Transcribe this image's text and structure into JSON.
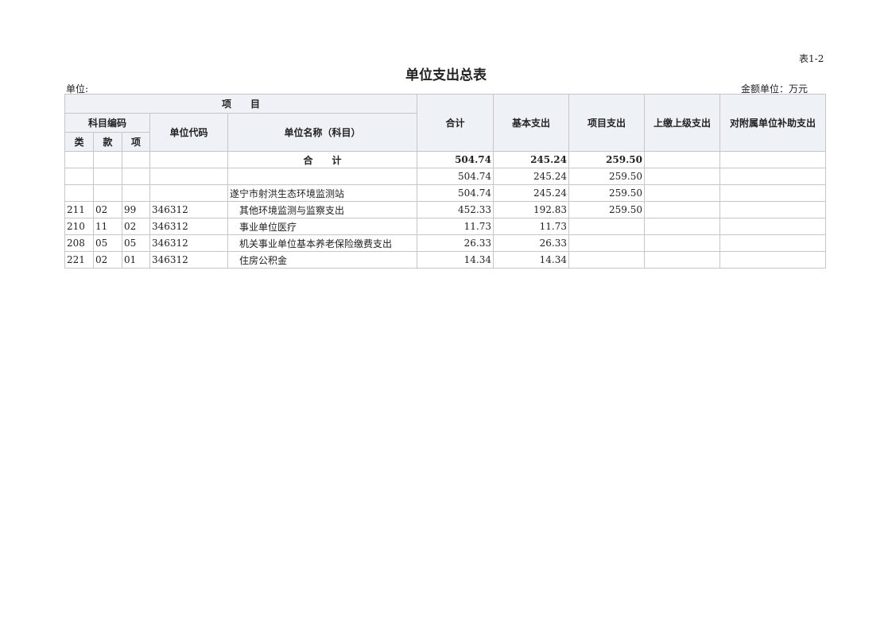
{
  "table_no": "表1-2",
  "title": "单位支出总表",
  "unit_label": "单位:",
  "money_unit": "金额单位：万元",
  "headers": {
    "item": "项　　目",
    "subject_code": "科目编码",
    "lei": "类",
    "kuan": "款",
    "xiang": "项",
    "unit_code": "单位代码",
    "unit_name": "单位名称（科目）",
    "total": "合计",
    "basic": "基本支出",
    "project": "项目支出",
    "upper": "上缴上级支出",
    "subsidy": "对附属单位补助支出"
  },
  "rows": [
    {
      "lei": "",
      "kuan": "",
      "xiang": "",
      "code": "",
      "name": "合　　计",
      "total": "504.74",
      "basic": "245.24",
      "project": "259.50",
      "upper": "",
      "subsidy": ""
    },
    {
      "lei": "",
      "kuan": "",
      "xiang": "",
      "code": "",
      "name": "",
      "total": "504.74",
      "basic": "245.24",
      "project": "259.50",
      "upper": "",
      "subsidy": ""
    },
    {
      "lei": "",
      "kuan": "",
      "xiang": "",
      "code": "",
      "name": "遂宁市射洪生态环境监测站",
      "total": "504.74",
      "basic": "245.24",
      "project": "259.50",
      "upper": "",
      "subsidy": ""
    },
    {
      "lei": "211",
      "kuan": "02",
      "xiang": "99",
      "code": "346312",
      "name": "其他环境监测与监察支出",
      "total": "452.33",
      "basic": "192.83",
      "project": "259.50",
      "upper": "",
      "subsidy": ""
    },
    {
      "lei": "210",
      "kuan": "11",
      "xiang": "02",
      "code": "346312",
      "name": "事业单位医疗",
      "total": "11.73",
      "basic": "11.73",
      "project": "",
      "upper": "",
      "subsidy": ""
    },
    {
      "lei": "208",
      "kuan": "05",
      "xiang": "05",
      "code": "346312",
      "name": "机关事业单位基本养老保险缴费支出",
      "total": "26.33",
      "basic": "26.33",
      "project": "",
      "upper": "",
      "subsidy": ""
    },
    {
      "lei": "221",
      "kuan": "02",
      "xiang": "01",
      "code": "346312",
      "name": "住房公积金",
      "total": "14.34",
      "basic": "14.34",
      "project": "",
      "upper": "",
      "subsidy": ""
    }
  ]
}
